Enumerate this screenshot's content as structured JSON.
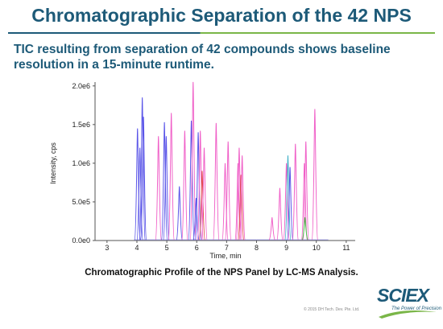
{
  "slide": {
    "title": "Chromatographic Separation of the 42 NPS",
    "subtitle": "TIC resulting from separation of 42 compounds shows baseline resolution in a 15-minute runtime.",
    "caption": "Chromatographic Profile of the NPS Panel by LC-MS Analysis.",
    "copyright": "© 2015 DH Tech. Dev. Pte. Ltd.",
    "logo_text": "SCIEX",
    "logo_tagline": "The Power of Precision"
  },
  "colors": {
    "title": "#1d5a78",
    "rule_green": "#7ab648",
    "peak_blue": "#5a55e8",
    "peak_magenta": "#f060c8",
    "peak_red": "#e04848",
    "peak_cyan": "#40b0c8",
    "peak_green": "#40c040",
    "axis": "#555555"
  },
  "chart_data": {
    "type": "line",
    "xlabel": "Time, min",
    "ylabel": "Intensity, cps",
    "xlim": [
      2.6,
      11.3
    ],
    "ylim": [
      0,
      2050000
    ],
    "x_ticks": [
      3,
      4,
      5,
      6,
      7,
      8,
      9,
      10,
      11
    ],
    "x_tick_labels": [
      "3",
      "4",
      "5",
      "6",
      "7",
      "8",
      "9",
      "10",
      "11"
    ],
    "y_ticks": [
      0,
      500000,
      1000000,
      1500000,
      2000000
    ],
    "y_tick_labels": [
      "0.0e0",
      "5.0e5",
      "1.0e6",
      "1.5e6",
      "2.0e6"
    ],
    "grid": false,
    "peaks": [
      {
        "rt": 4.02,
        "height": 1450000,
        "color": "blue"
      },
      {
        "rt": 4.1,
        "height": 1200000,
        "color": "blue"
      },
      {
        "rt": 4.18,
        "height": 1850000,
        "color": "blue"
      },
      {
        "rt": 4.22,
        "height": 1600000,
        "color": "blue"
      },
      {
        "rt": 4.72,
        "height": 1350000,
        "color": "magenta"
      },
      {
        "rt": 4.92,
        "height": 1530000,
        "color": "blue"
      },
      {
        "rt": 4.98,
        "height": 1350000,
        "color": "blue"
      },
      {
        "rt": 5.15,
        "height": 1650000,
        "color": "magenta"
      },
      {
        "rt": 5.42,
        "height": 700000,
        "color": "blue"
      },
      {
        "rt": 5.6,
        "height": 1420000,
        "color": "magenta"
      },
      {
        "rt": 5.82,
        "height": 1550000,
        "color": "blue"
      },
      {
        "rt": 5.88,
        "height": 2050000,
        "color": "magenta"
      },
      {
        "rt": 5.98,
        "height": 550000,
        "color": "blue"
      },
      {
        "rt": 6.05,
        "height": 1400000,
        "color": "blue"
      },
      {
        "rt": 6.12,
        "height": 1420000,
        "color": "magenta"
      },
      {
        "rt": 6.18,
        "height": 900000,
        "color": "red"
      },
      {
        "rt": 6.25,
        "height": 1200000,
        "color": "magenta"
      },
      {
        "rt": 6.65,
        "height": 1520000,
        "color": "magenta"
      },
      {
        "rt": 6.95,
        "height": 1000000,
        "color": "magenta"
      },
      {
        "rt": 7.05,
        "height": 1280000,
        "color": "magenta"
      },
      {
        "rt": 7.38,
        "height": 1000000,
        "color": "magenta"
      },
      {
        "rt": 7.42,
        "height": 1200000,
        "color": "magenta"
      },
      {
        "rt": 7.48,
        "height": 850000,
        "color": "red"
      },
      {
        "rt": 7.52,
        "height": 1100000,
        "color": "magenta"
      },
      {
        "rt": 8.52,
        "height": 300000,
        "color": "magenta"
      },
      {
        "rt": 8.78,
        "height": 680000,
        "color": "magenta"
      },
      {
        "rt": 9.0,
        "height": 1000000,
        "color": "magenta"
      },
      {
        "rt": 9.05,
        "height": 1100000,
        "color": "cyan"
      },
      {
        "rt": 9.12,
        "height": 950000,
        "color": "blue"
      },
      {
        "rt": 9.3,
        "height": 1250000,
        "color": "magenta"
      },
      {
        "rt": 9.6,
        "height": 1000000,
        "color": "magenta"
      },
      {
        "rt": 9.65,
        "height": 1280000,
        "color": "magenta"
      },
      {
        "rt": 9.62,
        "height": 300000,
        "color": "green"
      },
      {
        "rt": 9.95,
        "height": 1700000,
        "color": "magenta"
      }
    ]
  }
}
